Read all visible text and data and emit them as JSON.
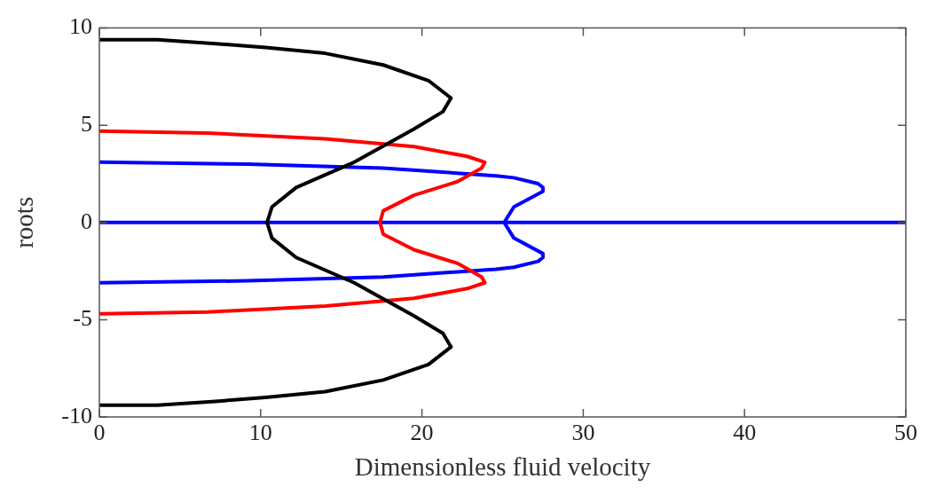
{
  "chart_data": {
    "type": "line",
    "xlabel": "Dimensionless fluid velocity",
    "ylabel": "roots",
    "xlim": [
      0,
      50
    ],
    "xticks": [
      0,
      10,
      20,
      30,
      40,
      50
    ],
    "ylim": [
      -10,
      10
    ],
    "yticks": [
      -10,
      -5,
      0,
      5,
      10
    ],
    "grid": false,
    "legend": false,
    "marker": "none",
    "line_style": "solid",
    "series": [
      {
        "color": "#000000",
        "x": [
          0,
          3.6,
          7.2,
          10.3,
          14.0,
          17.6,
          20.4,
          21.8,
          21.3,
          19.5,
          15.8,
          12.2,
          10.7,
          10.4,
          10.7,
          12.2,
          15.8,
          19.5,
          21.3,
          21.8,
          20.4,
          17.6,
          14.0,
          10.3,
          7.2,
          3.6,
          0
        ],
        "values": [
          9.4,
          9.4,
          9.2,
          9.0,
          8.7,
          8.1,
          7.3,
          6.4,
          5.7,
          4.8,
          3.1,
          1.8,
          0.8,
          0,
          -0.8,
          -1.8,
          -3.1,
          -4.8,
          -5.7,
          -6.4,
          -7.3,
          -8.1,
          -8.7,
          -9.0,
          -9.2,
          -9.4,
          -9.4
        ]
      },
      {
        "color": "#ff0000",
        "x": [
          0,
          6.7,
          14.0,
          19.5,
          22.8,
          23.9,
          23.7,
          22.2,
          19.5,
          17.6,
          17.4,
          17.6,
          19.5,
          22.2,
          23.7,
          23.9,
          22.8,
          19.5,
          14.0,
          6.7,
          0
        ],
        "values": [
          4.7,
          4.6,
          4.3,
          3.9,
          3.4,
          3.1,
          2.8,
          2.1,
          1.4,
          0.6,
          0,
          -0.6,
          -1.4,
          -2.1,
          -2.8,
          -3.1,
          -3.4,
          -3.9,
          -4.3,
          -4.6,
          -4.7
        ]
      },
      {
        "color": "#0000ff",
        "x": [
          0,
          9.2,
          17.6,
          24.6,
          25.7,
          27.2,
          27.5,
          27.5,
          25.7,
          25.1,
          25.7,
          27.5,
          27.5,
          27.2,
          25.7,
          24.6,
          17.6,
          9.2,
          0,
          null,
          0,
          50
        ],
        "values": [
          3.1,
          3.0,
          2.8,
          2.4,
          2.3,
          2.0,
          1.8,
          1.6,
          0.8,
          0,
          -0.8,
          -1.6,
          -1.8,
          -2.0,
          -2.3,
          -2.4,
          -2.8,
          -3.0,
          -3.1,
          null,
          0,
          0
        ]
      }
    ]
  }
}
